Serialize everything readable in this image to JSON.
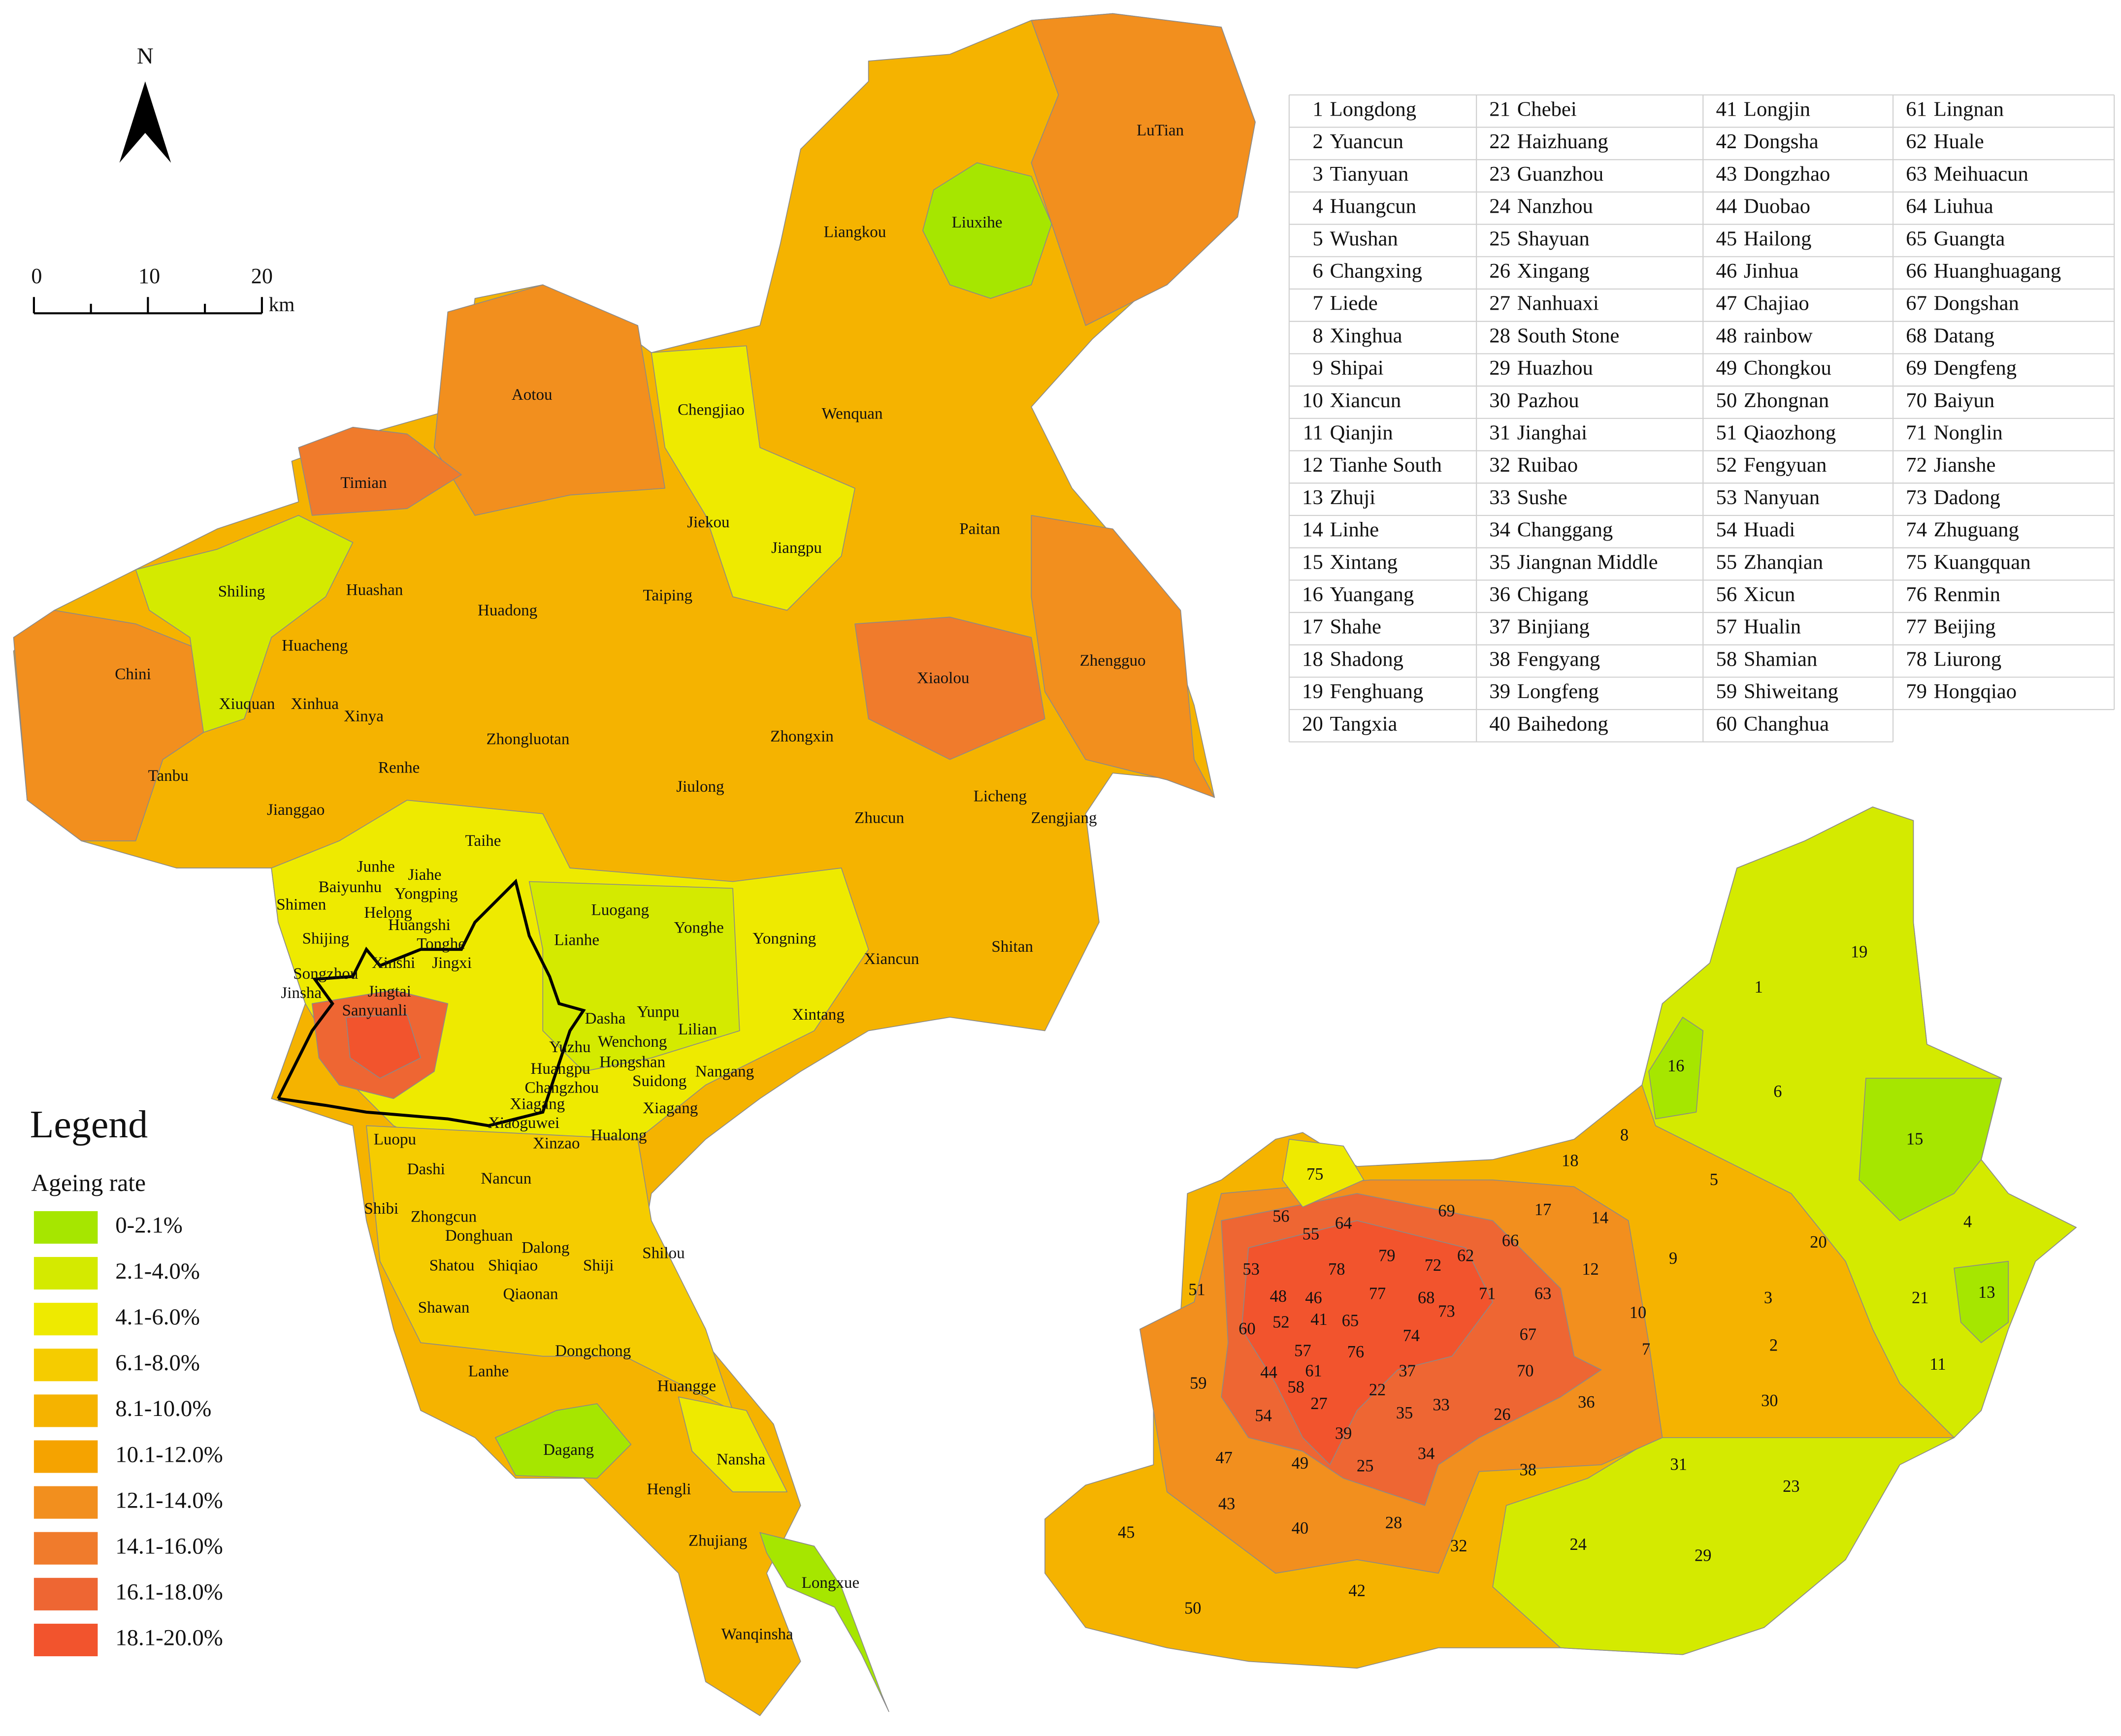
{
  "north_arrow": "N",
  "scale_bar": {
    "ticks": [
      "0",
      "10",
      "20"
    ],
    "unit": "km"
  },
  "legend": {
    "title": "Legend",
    "subtitle": "Ageing rate",
    "items": [
      {
        "label": "0-2.1%",
        "color": "#a6e600"
      },
      {
        "label": "2.1-4.0%",
        "color": "#d4ea00"
      },
      {
        "label": "4.1-6.0%",
        "color": "#eeea00"
      },
      {
        "label": "6.1-8.0%",
        "color": "#f5cc00"
      },
      {
        "label": "8.1-10.0%",
        "color": "#f5b300"
      },
      {
        "label": "10.1-12.0%",
        "color": "#f5a300"
      },
      {
        "label": "12.1-14.0%",
        "color": "#f28f1e"
      },
      {
        "label": "14.1-16.0%",
        "color": "#f07b2c"
      },
      {
        "label": "16.1-18.0%",
        "color": "#ee6633"
      },
      {
        "label": "18.1-20.0%",
        "color": "#f2542d"
      }
    ]
  },
  "map_labels": [
    "LuTian",
    "Liangkou",
    "Liuxihe",
    "Aotou",
    "Chengjiao",
    "Wenquan",
    "Timian",
    "Paitan",
    "Jiekou",
    "Jiangpu",
    "Shiling",
    "Huashan",
    "Huadong",
    "Taiping",
    "Chini",
    "Huacheng",
    "Xiaolou",
    "Zhengguo",
    "Xiuquan",
    "Xinhua",
    "Xinya",
    "Zhongluotan",
    "Zhongxin",
    "Tanbu",
    "Renhe",
    "Jiulong",
    "Licheng",
    "Jianggao",
    "Zhucun",
    "Zengjiang",
    "Taihe",
    "Junhe",
    "Jiahe",
    "Baiyunhu",
    "Yongping",
    "Shimen",
    "Luogang",
    "Helong",
    "Yonghe",
    "Huangshi",
    "Shijing",
    "Tonghe",
    "Lianhe",
    "Yongning",
    "Shitan",
    "Xinshi",
    "Jingxi",
    "Songzhou",
    "Xiancun",
    "Jingtai",
    "Jinsha",
    "Sanyuanli",
    "Dasha",
    "Yunpu",
    "Xintang",
    "Wenchong",
    "Lilian",
    "Yuzhu",
    "Hongshan",
    "Huangpu",
    "Nangang",
    "Suidong",
    "Changzhou",
    "Xiagang",
    "Xiagang",
    "Xiaoguwei",
    "Hualong",
    "Xinzao",
    "Luopu",
    "Dashi",
    "Nancun",
    "Shibi",
    "Zhongcun",
    "Donghuan",
    "Dalong",
    "Shiqiao",
    "Shatou",
    "Shiji",
    "Shilou",
    "Qiaonan",
    "Shawan",
    "Dongchong",
    "Lanhe",
    "Huangge",
    "Dagang",
    "Nansha",
    "Hengli",
    "Zhujiang",
    "Longxue",
    "Wanqinsha"
  ],
  "index_table": [
    {
      "number": 1,
      "name": "Longdong"
    },
    {
      "number": 2,
      "name": "Yuancun"
    },
    {
      "number": 3,
      "name": "Tianyuan"
    },
    {
      "number": 4,
      "name": "Huangcun"
    },
    {
      "number": 5,
      "name": "Wushan"
    },
    {
      "number": 6,
      "name": "Changxing"
    },
    {
      "number": 7,
      "name": "Liede"
    },
    {
      "number": 8,
      "name": "Xinghua"
    },
    {
      "number": 9,
      "name": "Shipai"
    },
    {
      "number": 10,
      "name": "Xiancun"
    },
    {
      "number": 11,
      "name": "Qianjin"
    },
    {
      "number": 12,
      "name": "Tianhe South"
    },
    {
      "number": 13,
      "name": "Zhuji"
    },
    {
      "number": 14,
      "name": "Linhe"
    },
    {
      "number": 15,
      "name": "Xintang"
    },
    {
      "number": 16,
      "name": "Yuangang"
    },
    {
      "number": 17,
      "name": "Shahe"
    },
    {
      "number": 18,
      "name": "Shadong"
    },
    {
      "number": 19,
      "name": "Fenghuang"
    },
    {
      "number": 20,
      "name": "Tangxia"
    },
    {
      "number": 21,
      "name": "Chebei"
    },
    {
      "number": 22,
      "name": "Haizhuang"
    },
    {
      "number": 23,
      "name": "Guanzhou"
    },
    {
      "number": 24,
      "name": "Nanzhou"
    },
    {
      "number": 25,
      "name": "Shayuan"
    },
    {
      "number": 26,
      "name": "Xingang"
    },
    {
      "number": 27,
      "name": "Nanhuaxi"
    },
    {
      "number": 28,
      "name": "South Stone"
    },
    {
      "number": 29,
      "name": "Huazhou"
    },
    {
      "number": 30,
      "name": "Pazhou"
    },
    {
      "number": 31,
      "name": "Jianghai"
    },
    {
      "number": 32,
      "name": "Ruibao"
    },
    {
      "number": 33,
      "name": "Sushe"
    },
    {
      "number": 34,
      "name": "Changgang"
    },
    {
      "number": 35,
      "name": "Jiangnan Middle"
    },
    {
      "number": 36,
      "name": "Chigang"
    },
    {
      "number": 37,
      "name": "Binjiang"
    },
    {
      "number": 38,
      "name": "Fengyang"
    },
    {
      "number": 39,
      "name": "Longfeng"
    },
    {
      "number": 40,
      "name": "Baihedong"
    },
    {
      "number": 41,
      "name": "Longjin"
    },
    {
      "number": 42,
      "name": "Dongsha"
    },
    {
      "number": 43,
      "name": "Dongzhao"
    },
    {
      "number": 44,
      "name": "Duobao"
    },
    {
      "number": 45,
      "name": "Hailong"
    },
    {
      "number": 46,
      "name": "Jinhua"
    },
    {
      "number": 47,
      "name": "Chajiao"
    },
    {
      "number": 48,
      "name": "rainbow"
    },
    {
      "number": 49,
      "name": "Chongkou"
    },
    {
      "number": 50,
      "name": "Zhongnan"
    },
    {
      "number": 51,
      "name": "Qiaozhong"
    },
    {
      "number": 52,
      "name": "Fengyuan"
    },
    {
      "number": 53,
      "name": "Nanyuan"
    },
    {
      "number": 54,
      "name": "Huadi"
    },
    {
      "number": 55,
      "name": "Zhanqian"
    },
    {
      "number": 56,
      "name": "Xicun"
    },
    {
      "number": 57,
      "name": "Hualin"
    },
    {
      "number": 58,
      "name": "Shamian"
    },
    {
      "number": 59,
      "name": "Shiweitang"
    },
    {
      "number": 60,
      "name": "Changhua"
    },
    {
      "number": 61,
      "name": "Lingnan"
    },
    {
      "number": 62,
      "name": "Huale"
    },
    {
      "number": 63,
      "name": "Meihuacun"
    },
    {
      "number": 64,
      "name": "Liuhua"
    },
    {
      "number": 65,
      "name": "Guangta"
    },
    {
      "number": 66,
      "name": "Huanghuagang"
    },
    {
      "number": 67,
      "name": "Dongshan"
    },
    {
      "number": 68,
      "name": "Datang"
    },
    {
      "number": 69,
      "name": "Dengfeng"
    },
    {
      "number": 70,
      "name": "Baiyun"
    },
    {
      "number": 71,
      "name": "Nonglin"
    },
    {
      "number": 72,
      "name": "Jianshe"
    },
    {
      "number": 73,
      "name": "Dadong"
    },
    {
      "number": 74,
      "name": "Zhuguang"
    },
    {
      "number": 75,
      "name": "Kuangquan"
    },
    {
      "number": 76,
      "name": "Renmin"
    },
    {
      "number": 77,
      "name": "Beijing"
    },
    {
      "number": 78,
      "name": "Liurong"
    },
    {
      "number": 79,
      "name": "Hongqiao"
    }
  ]
}
